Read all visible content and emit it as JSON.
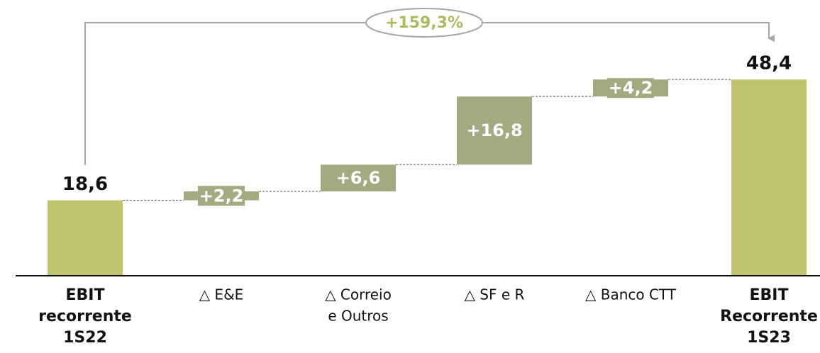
{
  "chart_data": {
    "type": "waterfall",
    "annotation": "+159,3%",
    "categories": [
      [
        "EBIT",
        "recorrente",
        "1S22"
      ],
      [
        "△ E&E"
      ],
      [
        "△ Correio",
        "e Outros"
      ],
      [
        "△ SF e R"
      ],
      [
        "△ Banco CTT"
      ],
      [
        "EBIT",
        "Recorrente",
        "1S23"
      ]
    ],
    "values": [
      18.6,
      2.2,
      6.6,
      16.8,
      4.2,
      48.4
    ],
    "value_labels": [
      "18,6",
      "+2,2",
      "+6,6",
      "+16,8",
      "+4,2",
      "48,4"
    ],
    "is_total": [
      true,
      false,
      false,
      false,
      false,
      true
    ],
    "total_color": "#bcc46e",
    "increment_color": "#a3aa80",
    "ylim": [
      0,
      68
    ]
  }
}
